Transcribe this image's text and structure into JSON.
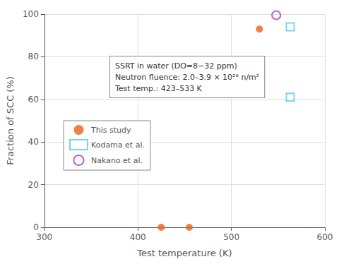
{
  "chart_data": {
    "type": "scatter",
    "xlabel": "Test temperature (K)",
    "ylabel": "Fraction of SCC (%)",
    "xlim": [
      300,
      600
    ],
    "ylim": [
      0,
      100
    ],
    "xticks": [
      300,
      400,
      500,
      600
    ],
    "yticks": [
      0,
      20,
      40,
      60,
      80,
      100
    ],
    "grid": true,
    "legend": "center left",
    "annotations": [
      "SSRT in water (DO=8−32 ppm)",
      "Neutron fluence: 2.0–3.9 × 10²⁶ n/m²",
      "Test temp.: 423–533 K"
    ],
    "series": [
      {
        "name": "This study",
        "color": "#e8631a",
        "marker": "circle",
        "x": [
          425,
          455,
          530
        ],
        "values": [
          0,
          0,
          93
        ]
      },
      {
        "name": "Kodama et al.",
        "color": "#55ccee",
        "marker": "square-open",
        "x": [
          563,
          563
        ],
        "values": [
          61,
          94
        ]
      },
      {
        "name": "Nakano et al.",
        "color": "#9944bb",
        "marker": "circle-open",
        "x": [
          548
        ],
        "values": [
          99.5
        ]
      }
    ]
  }
}
